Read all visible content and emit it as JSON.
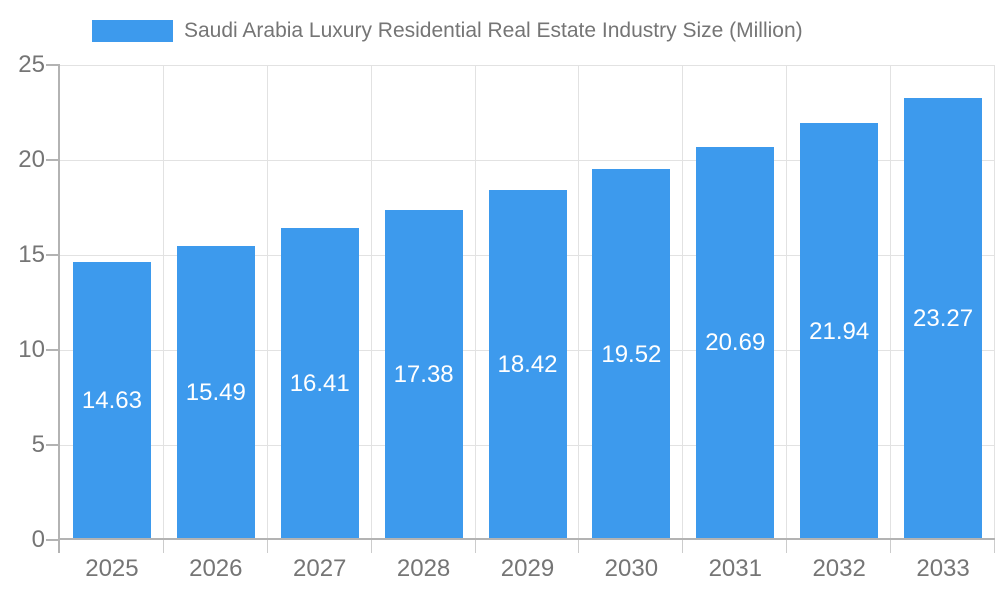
{
  "chart_data": {
    "type": "bar",
    "title": "Saudi Arabia Luxury Residential Real Estate Industry Size (Million)",
    "legend_position": "top",
    "categories": [
      "2025",
      "2026",
      "2027",
      "2028",
      "2029",
      "2030",
      "2031",
      "2032",
      "2033"
    ],
    "values": [
      14.63,
      15.49,
      16.41,
      17.38,
      18.42,
      19.52,
      20.69,
      21.94,
      23.27
    ],
    "value_labels": [
      "14.63",
      "15.49",
      "16.41",
      "17.38",
      "18.42",
      "19.52",
      "20.69",
      "21.94",
      "23.27"
    ],
    "xlabel": "",
    "ylabel": "",
    "ylim": [
      0,
      25
    ],
    "yticks": [
      0,
      5,
      10,
      15,
      20,
      25
    ],
    "grid": true,
    "bar_color": "#3d9aed",
    "bar_label_color": "#ffffff",
    "axis_text_color": "#757575",
    "gridline_color": "#e2e2e2",
    "axis_line_color": "#b3b3b3",
    "tick_mark_color": "#cccccc",
    "background_color": "#ffffff"
  }
}
